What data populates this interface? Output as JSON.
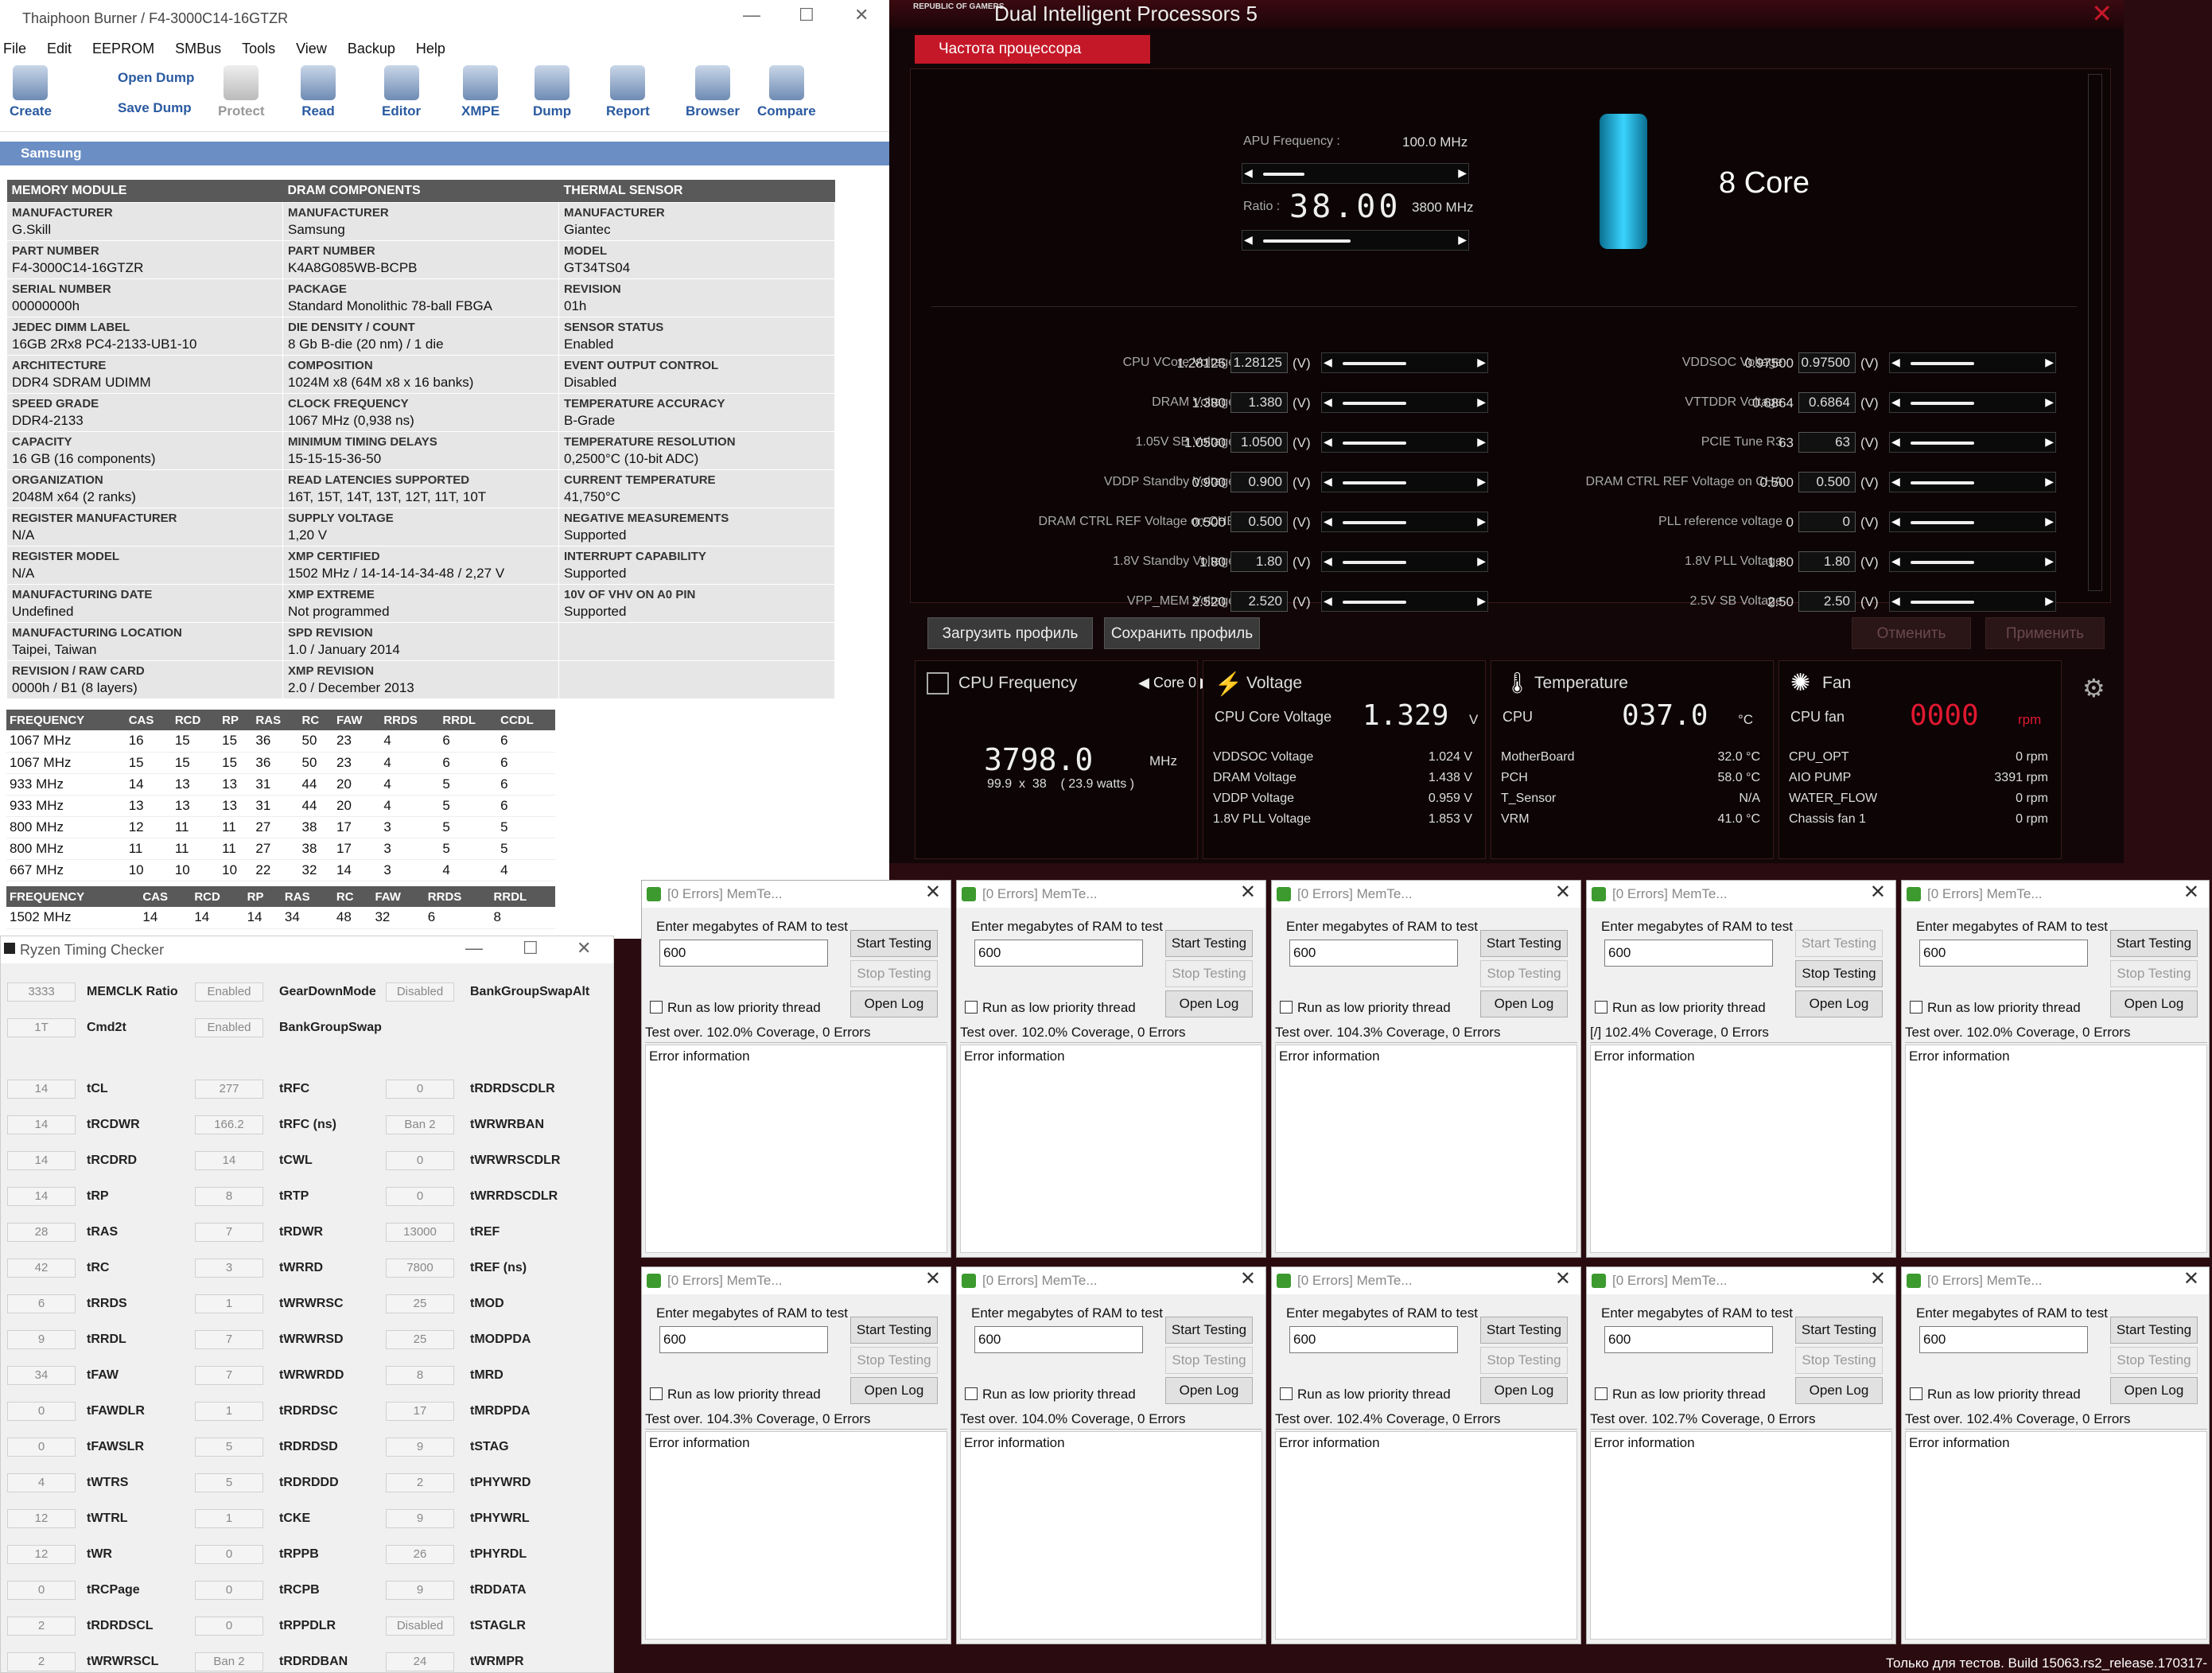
{
  "thaiphoon": {
    "title": "Thaiphoon Burner / F4-3000C14-16GTZR",
    "menu": [
      "File",
      "Edit",
      "EEPROM",
      "SMBus",
      "Tools",
      "View",
      "Backup",
      "Help"
    ],
    "toolbar": {
      "create": "Create",
      "open_dump": "Open Dump",
      "save_dump": "Save Dump",
      "protect": "Protect",
      "read": "Read",
      "editor": "Editor",
      "xmpe": "XMPE",
      "dump": "Dump",
      "report": "Report",
      "browser": "Browser",
      "compare": "Compare"
    },
    "group": "Samsung",
    "headers": [
      "MEMORY MODULE",
      "DRAM COMPONENTS",
      "THERMAL SENSOR"
    ],
    "rows": [
      [
        [
          "MANUFACTURER",
          "G.Skill"
        ],
        [
          "MANUFACTURER",
          "Samsung"
        ],
        [
          "MANUFACTURER",
          "Giantec"
        ]
      ],
      [
        [
          "PART NUMBER",
          "F4-3000C14-16GTZR"
        ],
        [
          "PART NUMBER",
          "K4A8G085WB-BCPB"
        ],
        [
          "MODEL",
          "GT34TS04"
        ]
      ],
      [
        [
          "SERIAL NUMBER",
          "00000000h"
        ],
        [
          "PACKAGE",
          "Standard Monolithic 78-ball FBGA"
        ],
        [
          "REVISION",
          "01h"
        ]
      ],
      [
        [
          "JEDEC DIMM LABEL",
          "16GB 2Rx8 PC4-2133-UB1-10"
        ],
        [
          "DIE DENSITY / COUNT",
          "8 Gb B-die (20 nm) / 1 die"
        ],
        [
          "SENSOR STATUS",
          "Enabled"
        ]
      ],
      [
        [
          "ARCHITECTURE",
          "DDR4 SDRAM UDIMM"
        ],
        [
          "COMPOSITION",
          "1024M x8 (64M x8 x 16 banks)"
        ],
        [
          "EVENT OUTPUT CONTROL",
          "Disabled"
        ]
      ],
      [
        [
          "SPEED GRADE",
          "DDR4-2133"
        ],
        [
          "CLOCK FREQUENCY",
          "1067 MHz (0,938 ns)"
        ],
        [
          "TEMPERATURE ACCURACY",
          "B-Grade"
        ]
      ],
      [
        [
          "CAPACITY",
          "16 GB (16 components)"
        ],
        [
          "MINIMUM TIMING DELAYS",
          "15-15-15-36-50"
        ],
        [
          "TEMPERATURE RESOLUTION",
          "0,2500°C (10-bit ADC)"
        ]
      ],
      [
        [
          "ORGANIZATION",
          "2048M x64 (2 ranks)"
        ],
        [
          "READ LATENCIES SUPPORTED",
          "16T, 15T, 14T, 13T, 12T, 11T, 10T"
        ],
        [
          "CURRENT TEMPERATURE",
          "41,750°C"
        ]
      ],
      [
        [
          "REGISTER MANUFACTURER",
          "N/A"
        ],
        [
          "SUPPLY VOLTAGE",
          "1,20 V"
        ],
        [
          "NEGATIVE MEASUREMENTS",
          "Supported"
        ]
      ],
      [
        [
          "REGISTER MODEL",
          "N/A"
        ],
        [
          "XMP CERTIFIED",
          "1502 MHz / 14-14-14-34-48 / 2,27 V"
        ],
        [
          "INTERRUPT CAPABILITY",
          "Supported"
        ]
      ],
      [
        [
          "MANUFACTURING DATE",
          "Undefined"
        ],
        [
          "XMP EXTREME",
          "Not programmed"
        ],
        [
          "10V OF VHV ON A0 PIN",
          "Supported"
        ]
      ],
      [
        [
          "MANUFACTURING LOCATION",
          "Taipei, Taiwan"
        ],
        [
          "SPD REVISION",
          "1.0 / January 2014"
        ],
        [
          "",
          ""
        ]
      ],
      [
        [
          "REVISION / RAW CARD",
          "0000h / B1 (8 layers)"
        ],
        [
          "XMP REVISION",
          "2.0 / December 2013"
        ],
        [
          "",
          ""
        ]
      ]
    ],
    "freq_headers": [
      "FREQUENCY",
      "CAS",
      "RCD",
      "RP",
      "RAS",
      "RC",
      "FAW",
      "RRDS",
      "RRDL",
      "CCDL"
    ],
    "freq_rows": [
      [
        "1067 MHz",
        "16",
        "15",
        "15",
        "36",
        "50",
        "23",
        "4",
        "6",
        "6"
      ],
      [
        "1067 MHz",
        "15",
        "15",
        "15",
        "36",
        "50",
        "23",
        "4",
        "6",
        "6"
      ],
      [
        "933 MHz",
        "14",
        "13",
        "13",
        "31",
        "44",
        "20",
        "4",
        "5",
        "6"
      ],
      [
        "933 MHz",
        "13",
        "13",
        "13",
        "31",
        "44",
        "20",
        "4",
        "5",
        "6"
      ],
      [
        "800 MHz",
        "12",
        "11",
        "11",
        "27",
        "38",
        "17",
        "3",
        "5",
        "5"
      ],
      [
        "800 MHz",
        "11",
        "11",
        "11",
        "27",
        "38",
        "17",
        "3",
        "5",
        "5"
      ],
      [
        "667 MHz",
        "10",
        "10",
        "10",
        "22",
        "32",
        "14",
        "3",
        "4",
        "4"
      ]
    ],
    "xmp_headers": [
      "FREQUENCY",
      "CAS",
      "RCD",
      "RP",
      "RAS",
      "RC",
      "FAW",
      "RRDS",
      "RRDL"
    ],
    "xmp_row": [
      "1502 MHz",
      "14",
      "14",
      "14",
      "34",
      "48",
      "32",
      "6",
      "8"
    ]
  },
  "rog": {
    "logo": "REPUBLIC OF GAMERS",
    "title": "Dual Intelligent Processors 5",
    "tab": "Частота процессора",
    "apu_label": "APU Frequency :",
    "apu_value": "100.0 MHz",
    "ratio_label": "Ratio :",
    "ratio_value": "38.00",
    "ratio_mhz": "3800 MHz",
    "core": "8 Core",
    "left": [
      [
        "CPU VCore Voltage",
        "1.28125",
        "1.28125"
      ],
      [
        "DRAM Voltage",
        "1.380",
        "1.380"
      ],
      [
        "1.05V SB Voltage",
        "1.0500",
        "1.0500"
      ],
      [
        "VDDP Standby Voltage",
        "0.900",
        "0.900"
      ],
      [
        "DRAM CTRL REF Voltage on CHB",
        "0.500",
        "0.500"
      ],
      [
        "1.8V Standby Voltage",
        "1.80",
        "1.80"
      ],
      [
        "VPP_MEM Voltage",
        "2.520",
        "2.520"
      ]
    ],
    "right": [
      [
        "VDDSOC Voltage",
        "0.97500",
        "0.97500"
      ],
      [
        "VTTDDR Voltage",
        "0.6864",
        "0.6864"
      ],
      [
        "PCIE Tune R3",
        "63",
        "63"
      ],
      [
        "DRAM CTRL REF Voltage on CHA",
        "0.500",
        "0.500"
      ],
      [
        "PLL reference voltage",
        "0",
        "0"
      ],
      [
        "1.8V PLL Voltage",
        "1.80",
        "1.80"
      ],
      [
        "2.5V SB Voltage",
        "2.50",
        "2.50"
      ]
    ],
    "unit": "(V)",
    "btn_load": "Загрузить профиль",
    "btn_save": "Сохранить профиль",
    "btn_cancel": "Отменить",
    "btn_apply": "Применить",
    "cpu_freq": {
      "title": "CPU Frequency",
      "core": "Core 0",
      "value": "3798.0",
      "unit": "MHz",
      "detail": "99.9  x  38    ( 23.9 watts )"
    },
    "voltage": {
      "title": "Voltage",
      "main_label": "CPU Core Voltage",
      "main_value": "1.329",
      "main_unit": "V",
      "rows": [
        [
          "VDDSOC Voltage",
          "1.024  V"
        ],
        [
          "DRAM Voltage",
          "1.438  V"
        ],
        [
          "VDDP Voltage",
          "0.959  V"
        ],
        [
          "1.8V PLL Voltage",
          "1.853  V"
        ]
      ]
    },
    "temp": {
      "title": "Temperature",
      "main_label": "CPU",
      "main_value": "037.0",
      "main_unit": "°C",
      "rows": [
        [
          "MotherBoard",
          "32.0 °C"
        ],
        [
          "PCH",
          "58.0 °C"
        ],
        [
          "T_Sensor",
          "N/A"
        ],
        [
          "VRM",
          "41.0 °C"
        ]
      ]
    },
    "fan": {
      "title": "Fan",
      "main_label": "CPU fan",
      "main_value": "0000",
      "main_unit": "rpm",
      "rows": [
        [
          "CPU_OPT",
          "0  rpm"
        ],
        [
          "AIO PUMP",
          "3391  rpm"
        ],
        [
          "WATER_FLOW",
          "0  rpm"
        ],
        [
          "Chassis fan 1",
          "0  rpm"
        ]
      ]
    }
  },
  "rtc": {
    "title": "Ryzen Timing Checker",
    "top": [
      [
        "3333",
        "MEMCLK Ratio",
        "Enabled",
        "GearDownMode",
        "Disabled",
        "BankGroupSwapAlt"
      ],
      [
        "1T",
        "Cmd2t",
        "Enabled",
        "BankGroupSwap",
        "",
        ""
      ]
    ],
    "rows": [
      [
        "14",
        "tCL",
        "277",
        "tRFC",
        "0",
        "tRDRDSCDLR"
      ],
      [
        "14",
        "tRCDWR",
        "166.2",
        "tRFC (ns)",
        "Ban 2",
        "tWRWRBAN"
      ],
      [
        "14",
        "tRCDRD",
        "14",
        "tCWL",
        "0",
        "tWRWRSCDLR"
      ],
      [
        "14",
        "tRP",
        "8",
        "tRTP",
        "0",
        "tWRRDSCDLR"
      ],
      [
        "28",
        "tRAS",
        "7",
        "tRDWR",
        "13000",
        "tREF"
      ],
      [
        "42",
        "tRC",
        "3",
        "tWRRD",
        "7800",
        "tREF (ns)"
      ],
      [
        "6",
        "tRRDS",
        "1",
        "tWRWRSC",
        "25",
        "tMOD"
      ],
      [
        "9",
        "tRRDL",
        "7",
        "tWRWRSD",
        "25",
        "tMODPDA"
      ],
      [
        "34",
        "tFAW",
        "7",
        "tWRWRDD",
        "8",
        "tMRD"
      ],
      [
        "0",
        "tFAWDLR",
        "1",
        "tRDRDSC",
        "17",
        "tMRDPDA"
      ],
      [
        "0",
        "tFAWSLR",
        "5",
        "tRDRDSD",
        "9",
        "tSTAG"
      ],
      [
        "4",
        "tWTRS",
        "5",
        "tRDRDDD",
        "2",
        "tPHYWRD"
      ],
      [
        "12",
        "tWTRL",
        "1",
        "tCKE",
        "9",
        "tPHYWRL"
      ],
      [
        "12",
        "tWR",
        "0",
        "tRPPB",
        "26",
        "tPHYRDL"
      ],
      [
        "0",
        "tRCPage",
        "0",
        "tRCPB",
        "9",
        "tRDDATA"
      ],
      [
        "2",
        "tRDRDSCL",
        "0",
        "tRPPDLR",
        "Disabled",
        "tSTAGLR"
      ],
      [
        "2",
        "tWRWRSCL",
        "Ban 2",
        "tRDRDBAN",
        "24",
        "tWRMPR"
      ]
    ]
  },
  "memtest": {
    "title": "[0 Errors] MemTe...",
    "prompt": "Enter megabytes of RAM to test",
    "value": "600",
    "start": "Start Testing",
    "stop": "Stop Testing",
    "low": "Run as low priority thread",
    "log": "Open Log",
    "error": "Error information",
    "status": [
      "Test over. 102.0% Coverage, 0 Errors",
      "Test over. 102.0% Coverage, 0 Errors",
      "Test over. 104.3% Coverage, 0 Errors",
      "[/]  102.4% Coverage, 0 Errors",
      "Test over. 102.0% Coverage, 0 Errors",
      "Test over. 104.3% Coverage, 0 Errors",
      "Test over. 104.0% Coverage, 0 Errors",
      "Test over. 102.4% Coverage, 0 Errors",
      "Test over. 102.7% Coverage, 0 Errors",
      "Test over. 102.4% Coverage, 0 Errors"
    ]
  },
  "status_bar": "Только для тестов. Build 15063.rs2_release.170317-"
}
